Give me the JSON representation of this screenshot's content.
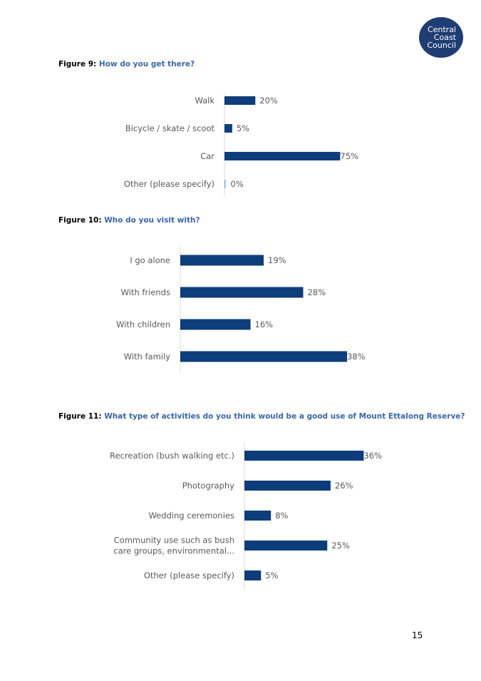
{
  "logo": {
    "line1": "Central",
    "line2": "Coast",
    "line3": "Council"
  },
  "page_number": "15",
  "bar_color": "#0d3d7a",
  "chart_data": [
    {
      "type": "bar",
      "orientation": "horizontal",
      "figure_label": "Figure 9:",
      "title": "How do you get there?",
      "categories": [
        "Walk",
        "Bicycle / skate / scoot",
        "Car",
        "Other (please specify)"
      ],
      "values": [
        20,
        5,
        75,
        0
      ],
      "value_labels": [
        "20%",
        "5%",
        "75%",
        "0%"
      ],
      "xlim": [
        0,
        100
      ]
    },
    {
      "type": "bar",
      "orientation": "horizontal",
      "figure_label": "Figure 10:",
      "title": "Who do you visit with?",
      "categories": [
        "I go alone",
        "With friends",
        "With children",
        "With family"
      ],
      "values": [
        19,
        28,
        16,
        38
      ],
      "value_labels": [
        "19%",
        "28%",
        "16%",
        "38%"
      ],
      "xlim": [
        0,
        100
      ]
    },
    {
      "type": "bar",
      "orientation": "horizontal",
      "figure_label": "Figure 11:",
      "title": "What type of activities do you think would be a good use of Mount Ettalong Reserve?",
      "categories": [
        [
          "Recreation (bush walking etc.)"
        ],
        [
          "Photography"
        ],
        [
          "Wedding ceremonies"
        ],
        [
          "Community use such as bush",
          "care groups, environmental..."
        ],
        [
          "Other (please specify)"
        ]
      ],
      "values": [
        36,
        26,
        8,
        25,
        5
      ],
      "value_labels": [
        "36%",
        "26%",
        "8%",
        "25%",
        "5%"
      ],
      "xlim": [
        0,
        100
      ]
    }
  ]
}
